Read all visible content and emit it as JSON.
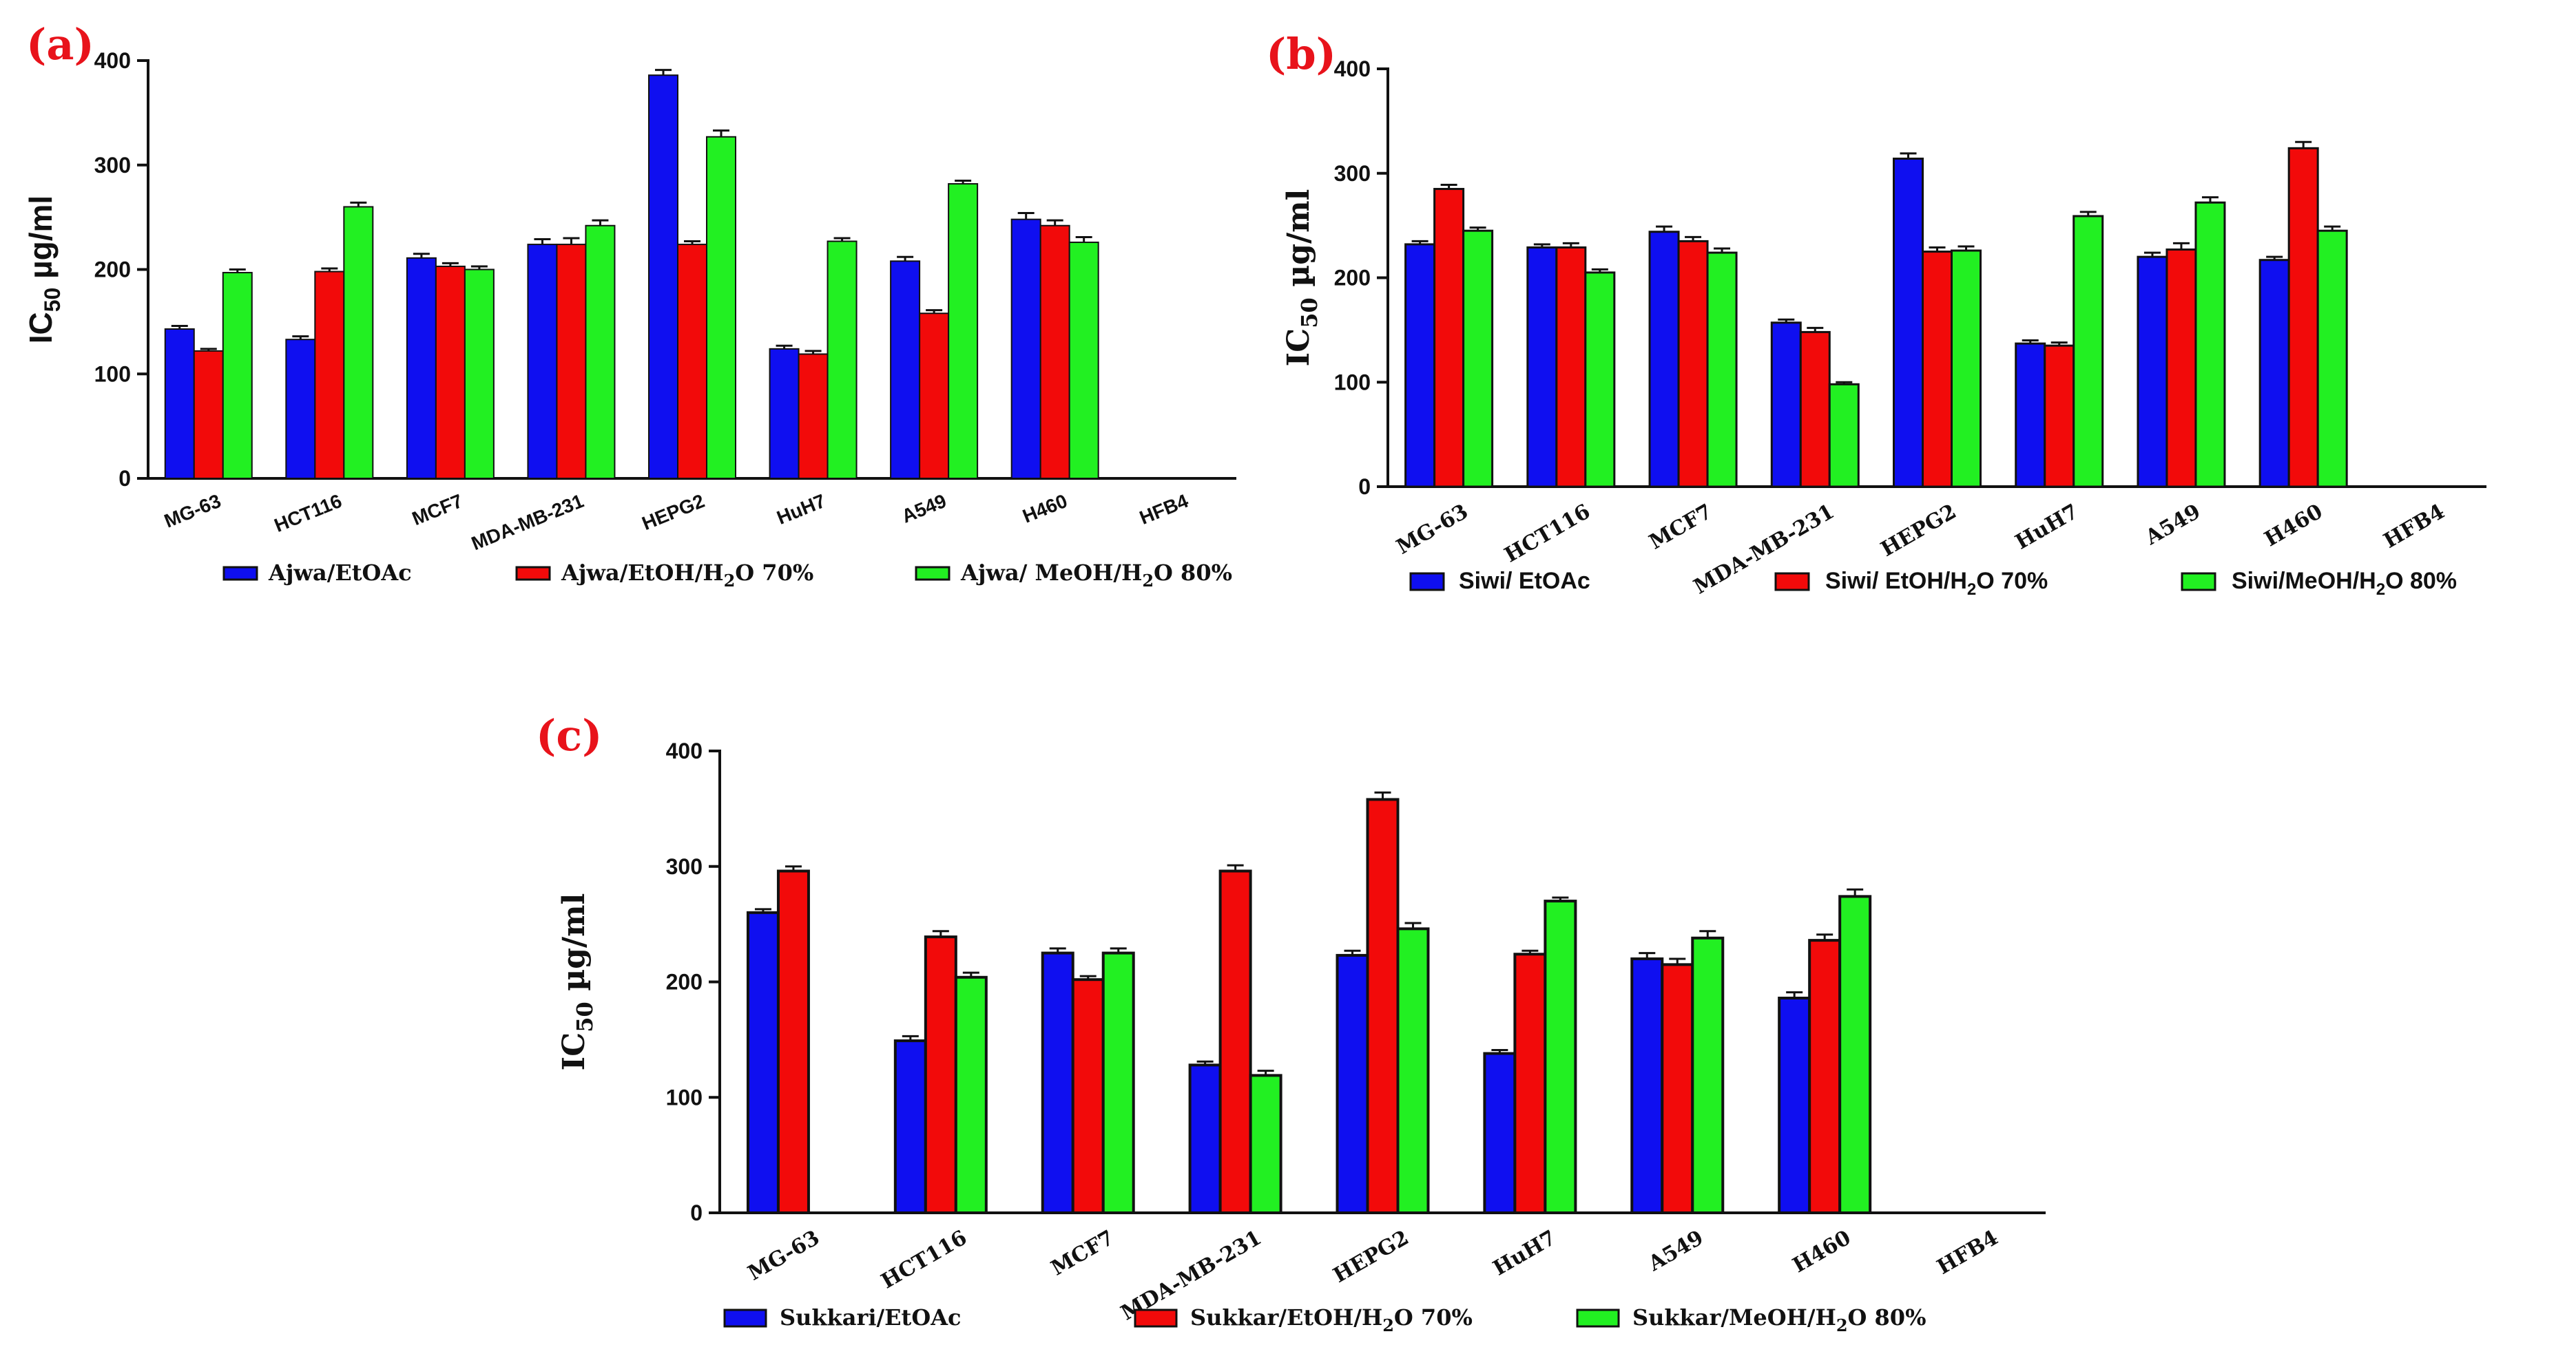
{
  "colors": {
    "s1": "#0f0ff0",
    "s2": "#f20a0a",
    "s3": "#22f022",
    "axis": "#111111"
  },
  "chart_data": [
    {
      "panel": "(a)",
      "type": "bar",
      "ylabel": "IC",
      "ylabel_sub": "50",
      "ylabel_unit": " µg/ml",
      "ylim": [
        0,
        400
      ],
      "yticks": [
        "0",
        "100",
        "200",
        "300",
        "400"
      ],
      "categories": [
        "MG-63",
        "HCT116",
        "MCF7",
        "MDA-MB-231",
        "HEPG2",
        "HuH7",
        "A549",
        "H460",
        "HFB4"
      ],
      "series": [
        {
          "name": "Ajwa/EtOAc",
          "values": [
            143,
            133,
            211,
            224,
            386,
            124,
            208,
            248,
            0
          ]
        },
        {
          "name": "Ajwa/EtOH/H",
          "name_sub": "2",
          "name_tail": "O 70%",
          "values": [
            122,
            198,
            203,
            224,
            224,
            119,
            158,
            242,
            0
          ]
        },
        {
          "name": "Ajwa/ MeOH/H",
          "name_sub": "2",
          "name_tail": "O 80%",
          "values": [
            197,
            260,
            200,
            242,
            327,
            227,
            282,
            226,
            0
          ]
        }
      ],
      "errors": [
        [
          3,
          3,
          4,
          5,
          5,
          3,
          4,
          6,
          0
        ],
        [
          2,
          3,
          3,
          6,
          3,
          3,
          3,
          5,
          0
        ],
        [
          3,
          4,
          3,
          5,
          6,
          3,
          3,
          5,
          0
        ]
      ]
    },
    {
      "panel": "(b)",
      "type": "bar",
      "ylabel": "IC",
      "ylabel_sub": "50",
      "ylabel_unit": " µg/ml",
      "ylim": [
        0,
        400
      ],
      "yticks": [
        "0",
        "100",
        "200",
        "300",
        "400"
      ],
      "categories": [
        "MG-63",
        "HCT116",
        "MCF7",
        "MDA-MB-231",
        "HEPG2",
        "HuH7",
        "A549",
        "H460",
        "HFB4"
      ],
      "series": [
        {
          "name": "Siwi/ EtOAc",
          "values": [
            232,
            229,
            244,
            157,
            314,
            137,
            220,
            217,
            0
          ]
        },
        {
          "name": "Siwi/ EtOH/H",
          "name_sub": "2",
          "name_tail": "O 70%",
          "values": [
            285,
            229,
            235,
            148,
            225,
            135,
            227,
            324,
            0
          ]
        },
        {
          "name": "Siwi/MeOH/H",
          "name_sub": "2",
          "name_tail": "O 80%",
          "values": [
            245,
            205,
            224,
            98,
            226,
            259,
            272,
            245,
            0
          ]
        }
      ],
      "errors": [
        [
          3,
          3,
          5,
          3,
          5,
          3,
          4,
          3,
          0
        ],
        [
          4,
          4,
          4,
          4,
          4,
          3,
          6,
          6,
          0
        ],
        [
          3,
          3,
          4,
          2,
          4,
          4,
          5,
          4,
          0
        ]
      ]
    },
    {
      "panel": "(c)",
      "type": "bar",
      "ylabel": "IC",
      "ylabel_sub": "50",
      "ylabel_unit": " µg/ml",
      "ylim": [
        0,
        400
      ],
      "yticks": [
        "0",
        "100",
        "200",
        "300",
        "400"
      ],
      "categories": [
        "MG-63",
        "HCT116",
        "MCF7",
        "MDA-MB-231",
        "HEPG2",
        "HuH7",
        "A549",
        "H460",
        "HFB4"
      ],
      "series": [
        {
          "name": "Sukkari/EtOAc",
          "values": [
            260,
            149,
            225,
            128,
            223,
            138,
            220,
            186,
            0
          ]
        },
        {
          "name": "Sukkar/EtOH/H",
          "name_sub": "2",
          "name_tail": "O 70%",
          "values": [
            296,
            239,
            202,
            296,
            358,
            224,
            215,
            236,
            0
          ]
        },
        {
          "name": "Sukkar/MeOH/H",
          "name_sub": "2",
          "name_tail": "O 80%",
          "values": [
            0,
            204,
            225,
            119,
            246,
            270,
            238,
            274,
            0
          ]
        }
      ],
      "errors": [
        [
          3,
          4,
          4,
          3,
          4,
          3,
          5,
          5,
          0
        ],
        [
          4,
          5,
          3,
          5,
          6,
          3,
          5,
          5,
          0
        ],
        [
          0,
          4,
          4,
          4,
          5,
          3,
          6,
          6,
          0
        ]
      ]
    }
  ]
}
